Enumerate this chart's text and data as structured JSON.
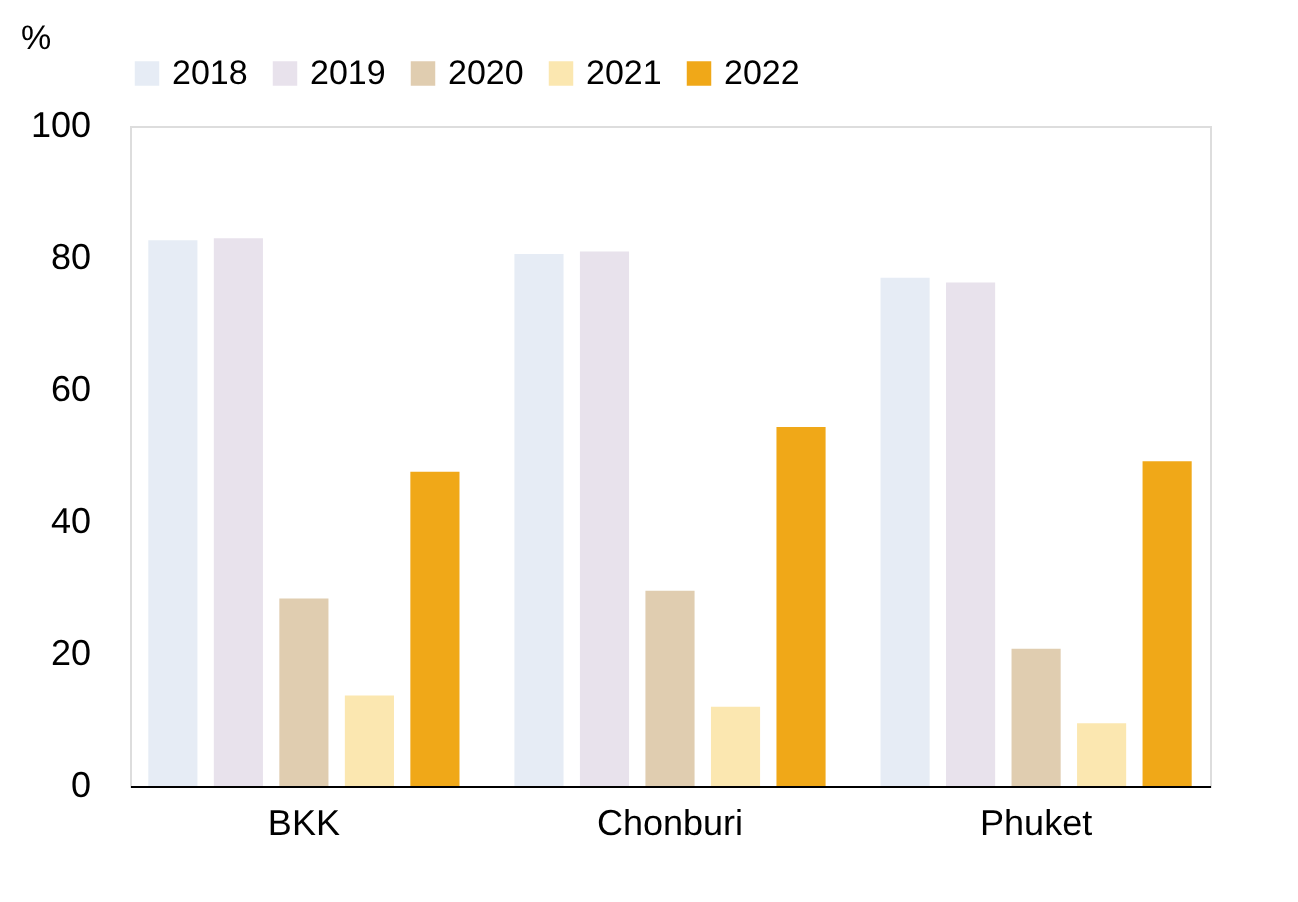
{
  "chart_data": {
    "type": "bar",
    "ylabel": "%",
    "categories": [
      "BKK",
      "Chonburi",
      "Phuket"
    ],
    "series": [
      {
        "name": "2018",
        "color": "#e6ecf5",
        "values": [
          82.7,
          80.6,
          77
        ]
      },
      {
        "name": "2019",
        "color": "#e8e2ec",
        "values": [
          83,
          81,
          76.3
        ]
      },
      {
        "name": "2020",
        "color": "#e0cdb0",
        "values": [
          28.4,
          29.6,
          20.8
        ]
      },
      {
        "name": "2021",
        "color": "#fbe7b0",
        "values": [
          13.7,
          12,
          9.5
        ]
      },
      {
        "name": "2022",
        "color": "#f0a818",
        "values": [
          47.6,
          54.4,
          49.2
        ]
      }
    ],
    "ylim": [
      0,
      100
    ],
    "yticks": [
      0,
      20,
      40,
      60,
      80,
      100
    ],
    "grid": false,
    "legend": "top"
  }
}
